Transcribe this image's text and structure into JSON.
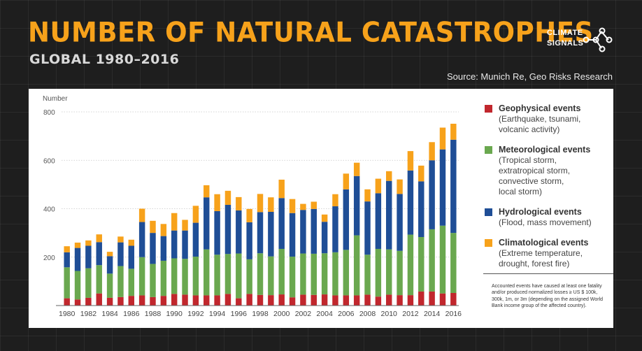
{
  "header": {
    "title": "NUMBER OF NATURAL CATASTROPHES",
    "subtitle": "GLOBAL 1980–2016",
    "source": "Source: Munich Re, Geo Risks Research"
  },
  "logo": {
    "line1": "CLIMATE",
    "line2": "SIGNALS",
    "icon": "network-nodes-icon"
  },
  "legend": {
    "items": [
      {
        "name": "Geophysical events",
        "desc": "(Earthquake, tsunami,\nvolcanic activity)",
        "color": "#c1272d"
      },
      {
        "name": "Meteorological events",
        "desc": "(Tropical storm,\nextratropical storm,\nconvective storm,\nlocal storm)",
        "color": "#6aa84f"
      },
      {
        "name": "Hydrological events",
        "desc": "(Flood, mass movement)",
        "color": "#1f4e96"
      },
      {
        "name": "Climatological events",
        "desc": "(Extreme temperature,\ndrought, forest fire)",
        "color": "#f7a21b"
      }
    ],
    "footnote": "Accounted events have caused at least one fatality and/or produced normalized losses ≥ US $ 100k, 300k, 1m, or 3m (depending on the assigned World Bank income group of the affected country)."
  },
  "chart_data": {
    "type": "bar",
    "stacked": true,
    "title": "Number of natural catastrophes",
    "ylabel": "Number",
    "xlabel": "",
    "ylim": [
      0,
      800
    ],
    "yticks": [
      200,
      400,
      600,
      800
    ],
    "x": [
      1980,
      1981,
      1982,
      1983,
      1984,
      1985,
      1986,
      1987,
      1988,
      1989,
      1990,
      1991,
      1992,
      1993,
      1994,
      1995,
      1996,
      1997,
      1998,
      1999,
      2000,
      2001,
      2002,
      2003,
      2004,
      2005,
      2006,
      2007,
      2008,
      2009,
      2010,
      2011,
      2012,
      2013,
      2014,
      2015,
      2016
    ],
    "xtick_labels": [
      "1980",
      "1982",
      "1984",
      "1986",
      "1988",
      "1990",
      "1992",
      "1994",
      "1996",
      "1998",
      "2000",
      "2002",
      "2004",
      "2006",
      "2008",
      "2010",
      "2012",
      "2014",
      "2016"
    ],
    "series": [
      {
        "name": "Geophysical events",
        "color": "#c1272d",
        "values": [
          30,
          25,
          32,
          50,
          32,
          35,
          40,
          42,
          35,
          40,
          48,
          45,
          42,
          42,
          42,
          48,
          30,
          48,
          44,
          43,
          46,
          34,
          45,
          44,
          46,
          42,
          42,
          42,
          45,
          37,
          45,
          43,
          43,
          58,
          58,
          50,
          52
        ]
      },
      {
        "name": "Meteorological events",
        "color": "#6aa84f",
        "values": [
          128,
          118,
          122,
          117,
          100,
          128,
          112,
          158,
          137,
          145,
          147,
          148,
          160,
          190,
          168,
          165,
          185,
          143,
          172,
          160,
          188,
          168,
          170,
          170,
          170,
          178,
          188,
          248,
          165,
          197,
          187,
          183,
          250,
          225,
          257,
          280,
          248
        ]
      },
      {
        "name": "Hydrological events",
        "color": "#1f4e96",
        "values": [
          62,
          95,
          93,
          95,
          72,
          98,
          95,
          145,
          128,
          102,
          115,
          117,
          140,
          215,
          180,
          203,
          178,
          153,
          170,
          184,
          210,
          180,
          180,
          185,
          130,
          190,
          250,
          245,
          220,
          230,
          283,
          235,
          265,
          230,
          285,
          315,
          385
        ]
      },
      {
        "name": "Climatological events",
        "color": "#f7a21b",
        "values": [
          25,
          22,
          22,
          32,
          18,
          24,
          25,
          55,
          50,
          50,
          72,
          44,
          70,
          50,
          70,
          58,
          55,
          55,
          75,
          60,
          76,
          58,
          25,
          30,
          30,
          50,
          65,
          55,
          50,
          60,
          40,
          60,
          80,
          65,
          75,
          90,
          66
        ]
      }
    ]
  }
}
